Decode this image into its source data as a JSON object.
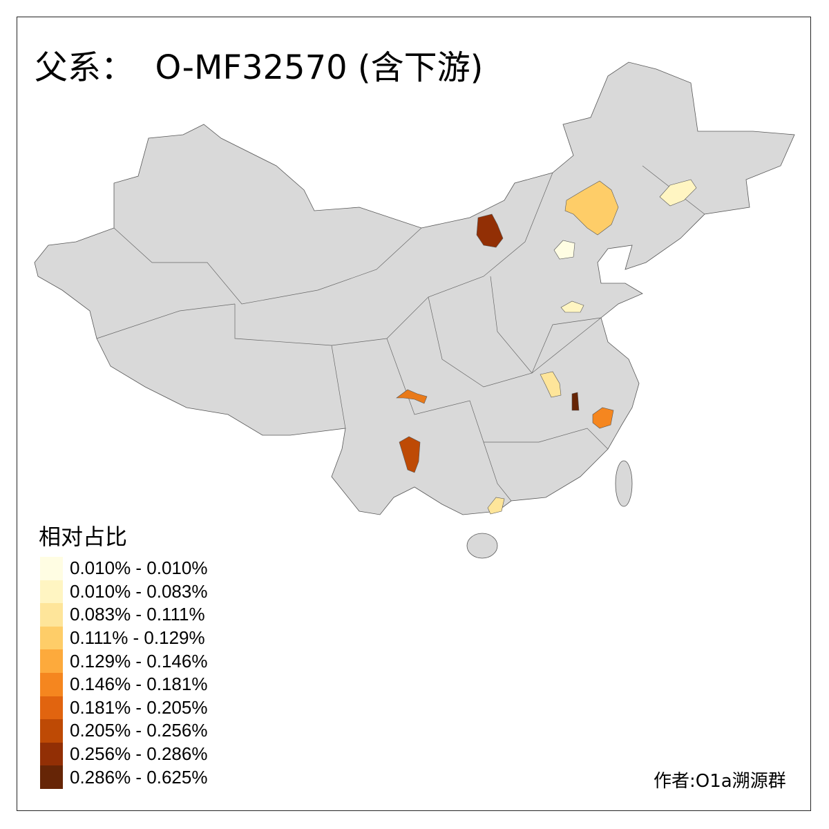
{
  "title": "父系：  O-MF32570 (含下游)",
  "legend": {
    "title": "相对占比",
    "items": [
      {
        "label": "0.010% - 0.010%",
        "color": "#FFFDE3"
      },
      {
        "label": "0.010% - 0.083%",
        "color": "#FFF5C2"
      },
      {
        "label": "0.083% - 0.111%",
        "color": "#FEE59A"
      },
      {
        "label": "0.111% - 0.129%",
        "color": "#FECD68"
      },
      {
        "label": "0.129% - 0.146%",
        "color": "#FDAA3C"
      },
      {
        "label": "0.146% - 0.181%",
        "color": "#F5861F"
      },
      {
        "label": "0.181% - 0.205%",
        "color": "#E1640F"
      },
      {
        "label": "0.205% - 0.256%",
        "color": "#BE4A05"
      },
      {
        "label": "0.256% - 0.286%",
        "color": "#922F05"
      },
      {
        "label": "0.286% - 0.625%",
        "color": "#662506"
      }
    ]
  },
  "base_color": "#D9D9D9",
  "credit": "作者:O1a溯源群"
}
